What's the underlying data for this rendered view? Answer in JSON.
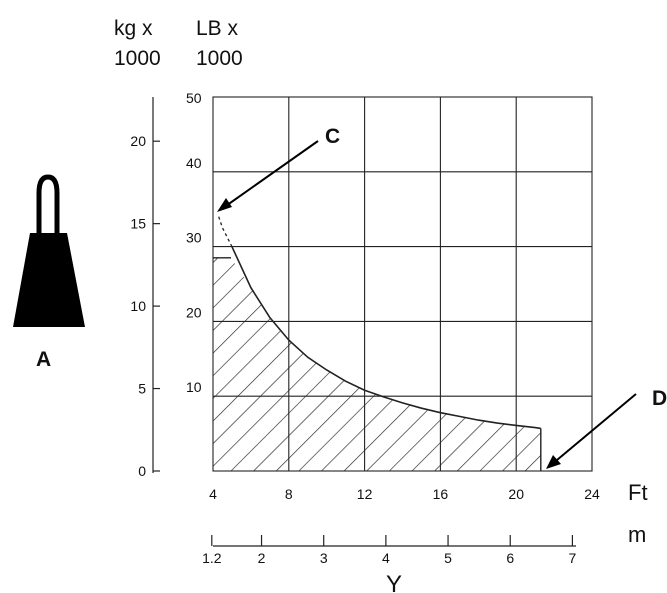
{
  "header": {
    "kg_unit_line1": "kg x",
    "kg_unit_line2": "1000",
    "lb_unit_line1": "LB x",
    "lb_unit_line2": "1000"
  },
  "callouts": {
    "a": "A",
    "c": "C",
    "d": "D",
    "y": "Y"
  },
  "colors": {
    "ink": "#111111",
    "weight_icon": "#000000"
  },
  "icons": {
    "weight": "weight-icon"
  },
  "chart_data": {
    "type": "area",
    "title": "",
    "x_units": {
      "primary": "Ft",
      "secondary": "m"
    },
    "x_ticks_ft": [
      "4",
      "8",
      "12",
      "16",
      "20",
      "24"
    ],
    "x_ticks_m": [
      "1.2",
      "2",
      "3",
      "4",
      "5",
      "6",
      "7"
    ],
    "y_ticks_lb": [
      "10",
      "20",
      "30",
      "40",
      "50"
    ],
    "y_ticks_kg": [
      "0",
      "5",
      "10",
      "15",
      "20"
    ],
    "xlim_ft": [
      4,
      24
    ],
    "ylim_lb": [
      0,
      50
    ],
    "grid": true,
    "series": [
      {
        "x": [
          4.3,
          4.5,
          5,
          6,
          7,
          8,
          9,
          10,
          11,
          12,
          13,
          14,
          15,
          16,
          17,
          18,
          19,
          20,
          21,
          21.3
        ],
        "y": [
          34,
          32.5,
          30,
          24.5,
          20.5,
          17.5,
          15.2,
          13.5,
          12,
          10.8,
          9.9,
          9.1,
          8.4,
          7.8,
          7.3,
          6.8,
          6.4,
          6.1,
          5.8,
          5.7
        ]
      }
    ],
    "capacity_limit_lb": 28.5,
    "max_extension_ft": 21.3
  }
}
